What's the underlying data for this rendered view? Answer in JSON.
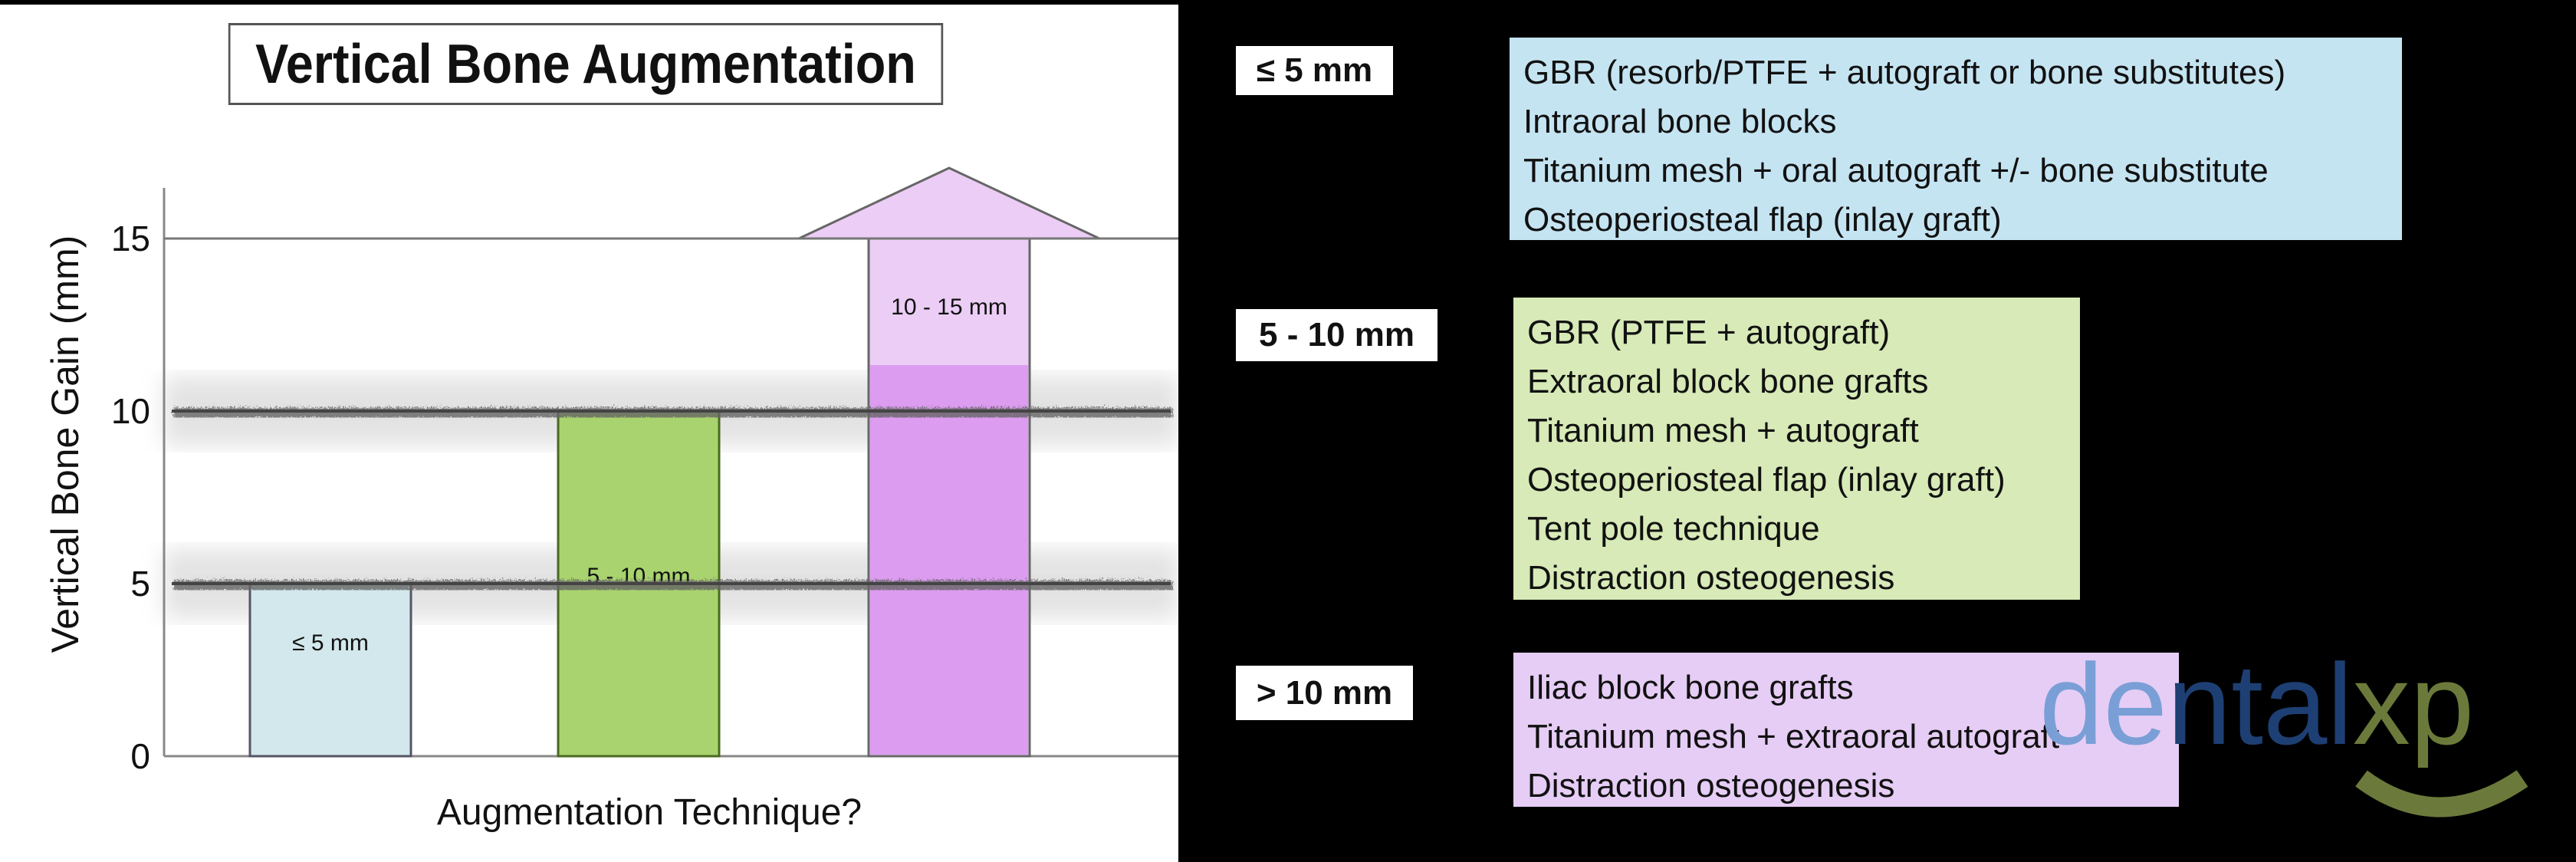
{
  "chart_data": {
    "type": "bar",
    "title": "Vertical Bone Augmentation",
    "ylabel": "Vertical Bone Gain (mm)",
    "xlabel": "Augmentation Technique?",
    "ylim": [
      0,
      15
    ],
    "yticks": [
      "0",
      "5",
      "10",
      "15"
    ],
    "ytick_values": [
      0,
      5,
      10,
      15
    ],
    "reference_lines": [
      5,
      10,
      15
    ],
    "bars": [
      {
        "label": "≤ 5 mm",
        "value": 5,
        "color": "#d3e8ec",
        "stroke": "#556"
      },
      {
        "label": "5 - 10 mm",
        "value": 10,
        "color": "#a9d36e",
        "stroke": "#4a6a20"
      },
      {
        "label": "10 - 15 mm",
        "value": 15,
        "color": "#dc9cf0",
        "stroke": "#666",
        "arrow": true
      }
    ]
  },
  "categories": [
    {
      "label": "≤ 5 mm",
      "color": "#c5e4f2",
      "items": [
        "GBR (resorb/PTFE + autograft or bone substitutes)",
        "Intraoral bone blocks",
        "Titanium mesh + oral autograft +/- bone substitute",
        "Osteoperiosteal flap (inlay graft)"
      ]
    },
    {
      "label": "5 - 10 mm",
      "color": "#d7eab7",
      "items": [
        "GBR (PTFE + autograft)",
        "Extraoral block bone grafts",
        "Titanium mesh + autograft",
        "Osteoperiosteal flap (inlay graft)",
        "Tent pole technique",
        "Distraction osteogenesis"
      ]
    },
    {
      "label": "> 10 mm",
      "color": "#e6cdf5",
      "items": [
        "Iliac block bone grafts",
        "Titanium mesh + extraoral autograft",
        "Distraction osteogenesis"
      ]
    }
  ],
  "logo": {
    "text": "dentalxp",
    "part1": "de",
    "part2": "ntal",
    "part3": "xp",
    "colors": [
      "#7a9fd6",
      "#1d3f73",
      "#6b7a3a"
    ]
  }
}
